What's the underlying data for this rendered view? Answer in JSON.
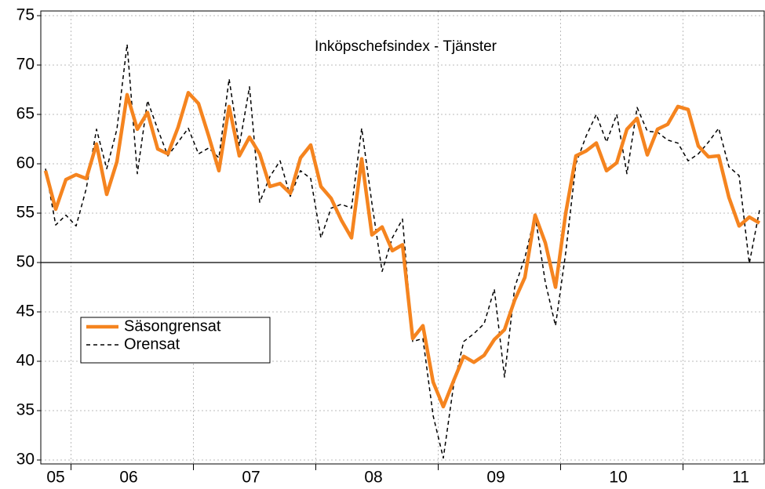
{
  "chart_data": {
    "type": "line",
    "title": "Inköpschefsindex - Tjänster",
    "categories": [
      null,
      "05",
      null,
      null,
      null,
      null,
      null,
      null,
      "06",
      null,
      null,
      null,
      null,
      null,
      null,
      null,
      null,
      null,
      null,
      null,
      "07",
      null,
      null,
      null,
      null,
      null,
      null,
      null,
      null,
      null,
      null,
      null,
      "08",
      null,
      null,
      null,
      null,
      null,
      null,
      null,
      null,
      null,
      null,
      null,
      "09",
      null,
      null,
      null,
      null,
      null,
      null,
      null,
      null,
      null,
      null,
      null,
      "10",
      null,
      null,
      null,
      null,
      null,
      null,
      null,
      null,
      null,
      null,
      null,
      "11",
      null,
      null
    ],
    "series": [
      {
        "name": "Säsongrensat",
        "color": "#f5841f",
        "values": [
          59.3,
          55.4,
          58.4,
          58.9,
          58.5,
          62.0,
          56.9,
          60.2,
          67.0,
          63.5,
          65.2,
          61.5,
          61.0,
          63.7,
          67.2,
          66.1,
          62.8,
          59.3,
          65.8,
          60.8,
          62.7,
          61.0,
          57.7,
          58.0,
          57.0,
          60.6,
          61.9,
          57.7,
          56.5,
          54.3,
          52.5,
          60.5,
          52.8,
          53.6,
          51.2,
          51.8,
          42.3,
          43.6,
          37.9,
          35.4,
          38.0,
          40.5,
          39.9,
          40.6,
          42.2,
          43.2,
          46.2,
          48.5,
          54.8,
          52.0,
          47.5,
          55.0,
          60.8,
          61.3,
          62.1,
          59.3,
          60.1,
          63.5,
          64.6,
          60.9,
          63.5,
          64.0,
          65.8,
          65.5,
          61.8,
          60.7,
          60.8,
          56.6,
          53.7,
          54.6,
          54.0
        ]
      },
      {
        "name": "Orensat",
        "color": "#000000",
        "values": [
          59.5,
          53.8,
          54.8,
          53.7,
          57.5,
          63.5,
          59.5,
          63.5,
          72.1,
          59.0,
          66.4,
          63.5,
          60.8,
          62.2,
          63.6,
          61.0,
          61.6,
          60.6,
          68.6,
          61.8,
          67.8,
          56.1,
          58.7,
          60.3,
          56.7,
          59.3,
          58.5,
          52.5,
          55.5,
          55.9,
          55.5,
          63.6,
          56.0,
          49.1,
          52.5,
          54.4,
          42.0,
          42.3,
          34.5,
          30.2,
          37.5,
          42.0,
          42.8,
          43.8,
          47.3,
          38.4,
          47.5,
          50.5,
          54.8,
          48.0,
          43.6,
          51.0,
          60.0,
          62.8,
          65.0,
          62.2,
          65.0,
          59.0,
          65.7,
          63.3,
          63.2,
          62.4,
          62.1,
          60.3,
          61.0,
          62.2,
          63.6,
          59.7,
          58.8,
          49.9,
          55.3
        ]
      }
    ],
    "ylim": [
      30,
      75
    ],
    "yticks": [
      30,
      35,
      40,
      45,
      50,
      55,
      60,
      65,
      70,
      75
    ],
    "reference_line": 50,
    "grid": true,
    "legend": "lower left"
  }
}
